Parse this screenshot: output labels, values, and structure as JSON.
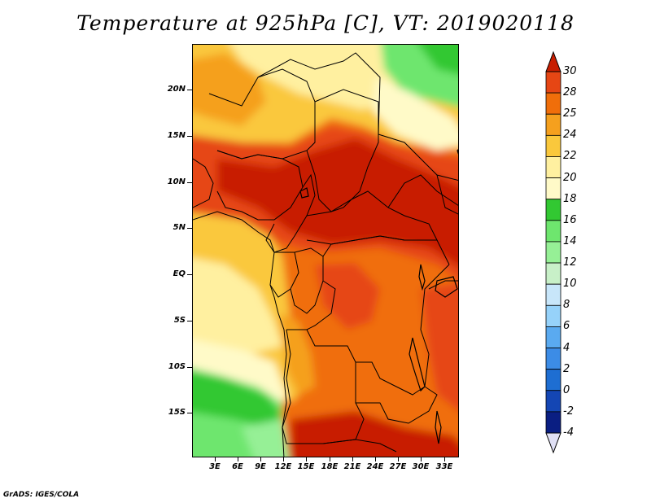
{
  "title": "Temperature at 925hPa [C], VT: 2019020118",
  "credit": "GrADS: IGES/COLA",
  "lat_labels": [
    "20N",
    "15N",
    "10N",
    "5N",
    "EQ",
    "5S",
    "10S",
    "15S"
  ],
  "lon_labels": [
    "3E",
    "6E",
    "9E",
    "12E",
    "15E",
    "18E",
    "21E",
    "24E",
    "27E",
    "30E",
    "33E"
  ],
  "colorbar": {
    "levels": [
      "30",
      "28",
      "25",
      "24",
      "22",
      "20",
      "18",
      "16",
      "14",
      "12",
      "10",
      "8",
      "6",
      "4",
      "2",
      "0",
      "-2",
      "-4"
    ],
    "colors": [
      "#c81e00",
      "#e64614",
      "#f06e0a",
      "#f5a01e",
      "#fac83c",
      "#fff0a0",
      "#fffac8",
      "#32c832",
      "#6ee66e",
      "#96f096",
      "#c8f0c8",
      "#c8e6fa",
      "#96d2fa",
      "#5aaaf0",
      "#3c8ce6",
      "#1e6ed2",
      "#1446b4",
      "#0a1e82",
      "#000a5a"
    ],
    "cap_colors": {
      "top": "#c81e00",
      "bottom": "#e0e0f5"
    }
  },
  "field_colors": {
    "hot": "#c81e00",
    "orange_red": "#e64614",
    "orange": "#f06e0a",
    "light_orange": "#f5a01e",
    "yellow_orange": "#fac83c",
    "pale_yellow": "#fff0a0",
    "cream": "#fffac8",
    "green": "#32c832",
    "light_green": "#6ee66e",
    "pale_green": "#96f096"
  }
}
